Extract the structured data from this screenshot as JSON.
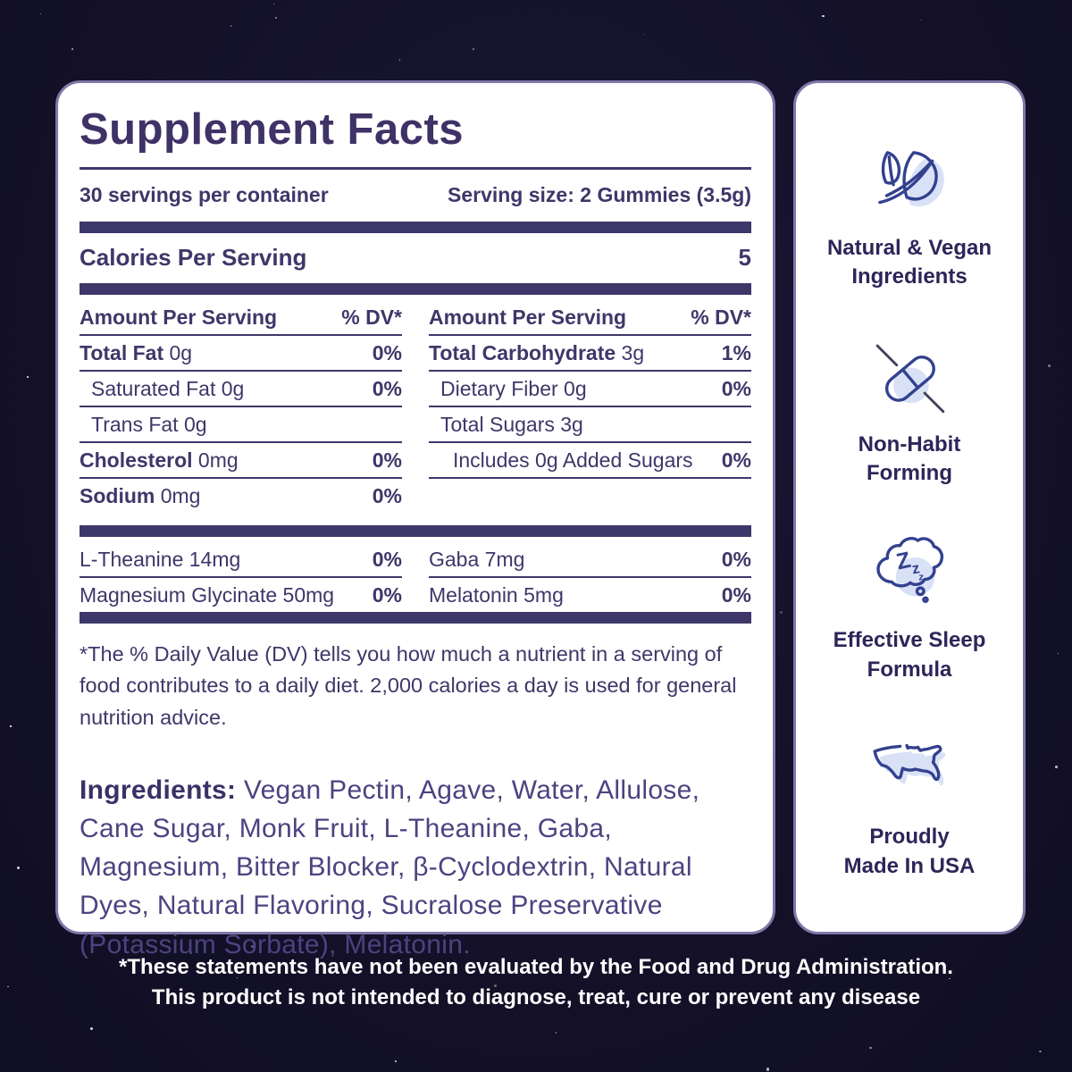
{
  "colors": {
    "background": "#141129",
    "panel_bg": "#ffffff",
    "panel_border": "#8177a8",
    "text_primary": "#3e3769",
    "text_ingredients": "#4c4380",
    "icon_stroke": "#33418f",
    "icon_fill": "#d9e1f7",
    "disclaimer_text": "#ffffff"
  },
  "supplement_facts": {
    "title": "Supplement Facts",
    "servings_per_container": "30 servings per container",
    "serving_size": "Serving size: 2 Gummies (3.5g)",
    "calories": {
      "label": "Calories Per Serving",
      "value": "5"
    },
    "table": {
      "left": {
        "header": {
          "label": "Amount Per Serving",
          "dv": "% DV*"
        },
        "rows": [
          {
            "name": "Total Fat",
            "amount": "0g",
            "dv": "0%"
          },
          {
            "name": "Saturated Fat",
            "amount": "0g",
            "dv": "0%"
          },
          {
            "name": "Trans Fat",
            "amount": "0g",
            "dv": ""
          },
          {
            "name": "Cholesterol",
            "amount": "0mg",
            "dv": "0%"
          },
          {
            "name": "Sodium",
            "amount": "0mg",
            "dv": "0%"
          }
        ]
      },
      "right": {
        "header": {
          "label": "Amount Per Serving",
          "dv": "% DV*"
        },
        "rows": [
          {
            "name": "Total Carbohydrate",
            "amount": "3g",
            "dv": "1%"
          },
          {
            "name": "Dietary Fiber",
            "amount": "0g",
            "dv": "0%"
          },
          {
            "name": "Total Sugars",
            "amount": "3g",
            "dv": ""
          },
          {
            "name": "Includes 0g Added Sugars",
            "amount": "",
            "dv": "0%"
          }
        ]
      }
    },
    "actives": {
      "left": [
        {
          "name": "L-Theanine 14mg",
          "dv": "0%"
        },
        {
          "name": "Magnesium Glycinate 50mg",
          "dv": "0%"
        }
      ],
      "right": [
        {
          "name": "Gaba 7mg",
          "dv": "0%"
        },
        {
          "name": "Melatonin 5mg",
          "dv": "0%"
        }
      ]
    },
    "dv_footnote": "*The % Daily Value (DV) tells you how much a nutrient in a serving of food contributes to a daily diet. 2,000 calories a day is used for general nutrition advice.",
    "ingredients_label": "Ingredients:",
    "ingredients_text": " Vegan Pectin, Agave, Water, Allulose, Cane Sugar, Monk Fruit, L-Theanine, Gaba, Magnesium, Bitter Blocker, β-Cyclodextrin, Natural Dyes, Natural Flavoring, Sucralose Preservative (Potassium Sorbate), Melatonin."
  },
  "benefits_panel": {
    "items": [
      {
        "icon": "leaf-icon",
        "line1": "Natural & Vegan",
        "line2": "Ingredients"
      },
      {
        "icon": "no-pill-icon",
        "line1": "Non-Habit",
        "line2": "Forming"
      },
      {
        "icon": "sleep-cloud-icon",
        "line1": "Effective Sleep",
        "line2": "Formula"
      },
      {
        "icon": "usa-map-icon",
        "line1": "Proudly",
        "line2": "Made In USA"
      }
    ],
    "sleep_z": [
      "Z",
      "z",
      "z"
    ]
  },
  "disclaimer": {
    "line1": "*These statements have not been evaluated by the Food and Drug Administration.",
    "line2": "This product is not intended to diagnose, treat, cure or prevent any disease"
  }
}
